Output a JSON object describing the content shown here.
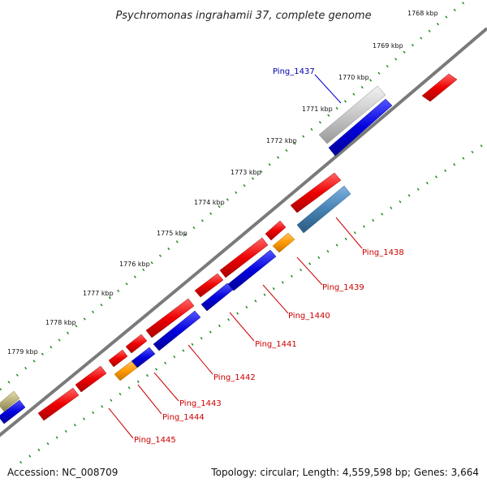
{
  "title": "Psychromonas ingrahamii 37, complete genome",
  "footer": {
    "accession": "Accession: NC_008709",
    "summary": "Topology: circular; Length: 4,559,598 bp; Genes: 3,664"
  },
  "ticks": [
    "1768 kbp",
    "1769 kbp",
    "1770 kbp",
    "1771 kbp",
    "1772 kbp",
    "1773 kbp",
    "1774 kbp",
    "1775 kbp",
    "1776 kbp",
    "1777 kbp",
    "1778 kbp",
    "1779 kbp"
  ],
  "gene_labels": [
    {
      "id": "Ping_1437",
      "color": "#0000aa"
    },
    {
      "id": "Ping_1438",
      "color": "#cc0000"
    },
    {
      "id": "Ping_1439",
      "color": "#cc0000"
    },
    {
      "id": "Ping_1440",
      "color": "#cc0000"
    },
    {
      "id": "Ping_1441",
      "color": "#cc0000"
    },
    {
      "id": "Ping_1442",
      "color": "#cc0000"
    },
    {
      "id": "Ping_1443",
      "color": "#cc0000"
    },
    {
      "id": "Ping_1444",
      "color": "#cc0000"
    },
    {
      "id": "Ping_1445",
      "color": "#cc0000"
    }
  ],
  "colors": {
    "forward": "#ee0000",
    "reverse": "#0000dd",
    "backbone": "#7a7a7a",
    "gc_ruler": "#1e8a1e",
    "pseudo": "#c8c8c8",
    "rna": "#4682b4",
    "orange": "#ff9900",
    "khaki": "#b8b07a"
  }
}
